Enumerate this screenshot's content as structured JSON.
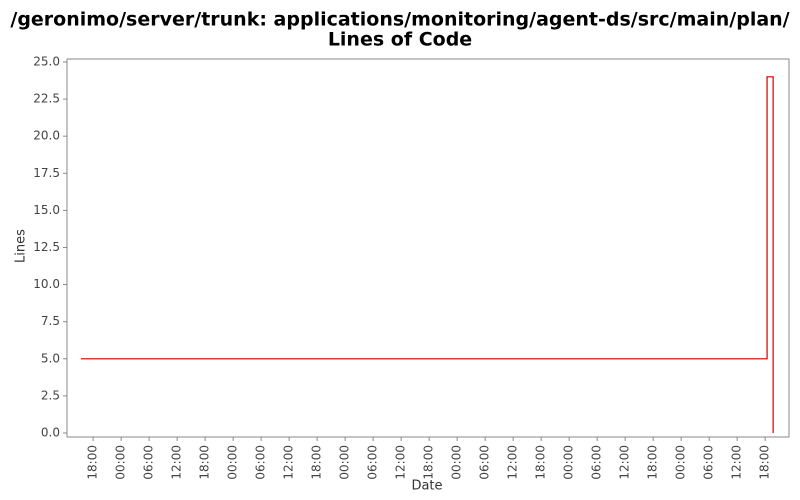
{
  "chart_data": {
    "type": "line",
    "step": "post",
    "title": [
      "/geronimo/server/trunk: applications/monitoring/agent-ds/src/main/plan/",
      "Lines of Code"
    ],
    "x_label": "Date",
    "y_label": "Lines",
    "x": [
      -2.6,
      144.4,
      145.7
    ],
    "values": [
      5,
      24,
      0
    ],
    "color": "#cc0000",
    "xlim": [
      -5.6,
      149.1
    ],
    "xticks": [
      {
        "value": 0,
        "label": "18:00"
      },
      {
        "value": 6,
        "label": "00:00"
      },
      {
        "value": 12,
        "label": "06:00"
      },
      {
        "value": 18,
        "label": "12:00"
      },
      {
        "value": 24,
        "label": "18:00"
      },
      {
        "value": 30,
        "label": "00:00"
      },
      {
        "value": 36,
        "label": "06:00"
      },
      {
        "value": 42,
        "label": "12:00"
      },
      {
        "value": 48,
        "label": "18:00"
      },
      {
        "value": 54,
        "label": "00:00"
      },
      {
        "value": 60,
        "label": "06:00"
      },
      {
        "value": 66,
        "label": "12:00"
      },
      {
        "value": 72,
        "label": "18:00"
      },
      {
        "value": 78,
        "label": "00:00"
      },
      {
        "value": 84,
        "label": "06:00"
      },
      {
        "value": 90,
        "label": "12:00"
      },
      {
        "value": 96,
        "label": "18:00"
      },
      {
        "value": 102,
        "label": "00:00"
      },
      {
        "value": 108,
        "label": "06:00"
      },
      {
        "value": 114,
        "label": "12:00"
      },
      {
        "value": 120,
        "label": "18:00"
      },
      {
        "value": 126,
        "label": "00:00"
      },
      {
        "value": 132,
        "label": "06:00"
      },
      {
        "value": 138,
        "label": "12:00"
      },
      {
        "value": 144,
        "label": "18:00"
      }
    ],
    "ylim": [
      -0.27,
      25.2
    ],
    "yticks": [
      {
        "value": 0,
        "label": "0.0"
      },
      2.5,
      {
        "value": 5,
        "label": "5.0"
      },
      7.5,
      {
        "value": 10,
        "label": "10.0"
      },
      12.5,
      {
        "value": 15,
        "label": "15.0"
      },
      17.5,
      {
        "value": 20,
        "label": "20.0"
      },
      22.5,
      {
        "value": 25,
        "label": "25.0"
      }
    ],
    "grid": false
  }
}
